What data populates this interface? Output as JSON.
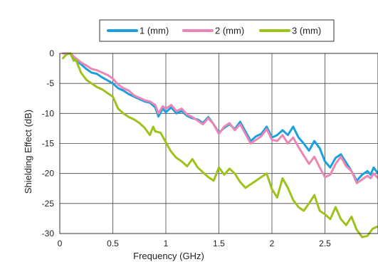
{
  "chart_data": {
    "type": "line",
    "title": "",
    "xlabel": "Frequency (GHz)",
    "ylabel": "Shielding Effect (dB)",
    "xlim": [
      0,
      3
    ],
    "ylim": [
      -30,
      0
    ],
    "x_ticks": [
      "0",
      "0.5",
      "1",
      "1.5",
      "2",
      "2.5"
    ],
    "y_ticks": [
      "0",
      "-5",
      "-10",
      "-15",
      "-20",
      "-25",
      "-30"
    ],
    "grid": true,
    "legend_position": "top-center",
    "series": [
      {
        "name": "1 (mm)",
        "color": "#1aa0dc",
        "points": [
          [
            0.03,
            0
          ],
          [
            0.1,
            0
          ],
          [
            0.15,
            -1.2
          ],
          [
            0.2,
            -1.8
          ],
          [
            0.25,
            -2.6
          ],
          [
            0.3,
            -3.2
          ],
          [
            0.35,
            -3.4
          ],
          [
            0.4,
            -4.0
          ],
          [
            0.45,
            -4.5
          ],
          [
            0.5,
            -5.0
          ],
          [
            0.55,
            -5.8
          ],
          [
            0.6,
            -6.2
          ],
          [
            0.65,
            -6.8
          ],
          [
            0.7,
            -7.2
          ],
          [
            0.75,
            -7.6
          ],
          [
            0.8,
            -8.0
          ],
          [
            0.85,
            -8.2
          ],
          [
            0.9,
            -9.0
          ],
          [
            0.93,
            -10.5
          ],
          [
            0.97,
            -9.2
          ],
          [
            1.0,
            -9.8
          ],
          [
            1.05,
            -9.0
          ],
          [
            1.1,
            -10.0
          ],
          [
            1.15,
            -9.6
          ],
          [
            1.2,
            -10.4
          ],
          [
            1.25,
            -10.8
          ],
          [
            1.3,
            -11.0
          ],
          [
            1.35,
            -11.6
          ],
          [
            1.4,
            -10.6
          ],
          [
            1.45,
            -11.8
          ],
          [
            1.5,
            -13.2
          ],
          [
            1.55,
            -12.4
          ],
          [
            1.6,
            -11.8
          ],
          [
            1.65,
            -12.6
          ],
          [
            1.7,
            -11.4
          ],
          [
            1.75,
            -13.0
          ],
          [
            1.8,
            -14.6
          ],
          [
            1.85,
            -13.8
          ],
          [
            1.9,
            -13.4
          ],
          [
            1.95,
            -12.2
          ],
          [
            2.0,
            -14.0
          ],
          [
            2.05,
            -13.6
          ],
          [
            2.1,
            -12.8
          ],
          [
            2.15,
            -13.6
          ],
          [
            2.2,
            -12.2
          ],
          [
            2.25,
            -14.0
          ],
          [
            2.3,
            -15.0
          ],
          [
            2.35,
            -16.2
          ],
          [
            2.4,
            -14.6
          ],
          [
            2.45,
            -15.8
          ],
          [
            2.5,
            -18.0
          ],
          [
            2.55,
            -19.0
          ],
          [
            2.6,
            -17.4
          ],
          [
            2.65,
            -16.8
          ],
          [
            2.7,
            -18.2
          ],
          [
            2.75,
            -19.6
          ],
          [
            2.8,
            -21.2
          ],
          [
            2.85,
            -20.2
          ],
          [
            2.9,
            -19.6
          ],
          [
            2.93,
            -20.2
          ],
          [
            2.96,
            -19.0
          ],
          [
            3.0,
            -20.0
          ]
        ]
      },
      {
        "name": "2 (mm)",
        "color": "#ec86b4",
        "points": [
          [
            0.03,
            0
          ],
          [
            0.1,
            0
          ],
          [
            0.15,
            -0.8
          ],
          [
            0.2,
            -1.5
          ],
          [
            0.25,
            -2.0
          ],
          [
            0.3,
            -2.6
          ],
          [
            0.35,
            -2.8
          ],
          [
            0.4,
            -3.2
          ],
          [
            0.45,
            -3.6
          ],
          [
            0.5,
            -4.2
          ],
          [
            0.55,
            -5.2
          ],
          [
            0.6,
            -5.8
          ],
          [
            0.65,
            -6.2
          ],
          [
            0.7,
            -7.0
          ],
          [
            0.75,
            -7.4
          ],
          [
            0.8,
            -7.8
          ],
          [
            0.85,
            -8.0
          ],
          [
            0.9,
            -8.6
          ],
          [
            0.93,
            -10.0
          ],
          [
            0.97,
            -8.8
          ],
          [
            1.0,
            -9.2
          ],
          [
            1.05,
            -8.6
          ],
          [
            1.1,
            -9.6
          ],
          [
            1.15,
            -9.2
          ],
          [
            1.2,
            -10.2
          ],
          [
            1.25,
            -10.6
          ],
          [
            1.3,
            -11.2
          ],
          [
            1.35,
            -11.8
          ],
          [
            1.4,
            -10.8
          ],
          [
            1.45,
            -11.8
          ],
          [
            1.5,
            -13.4
          ],
          [
            1.55,
            -12.2
          ],
          [
            1.6,
            -11.6
          ],
          [
            1.65,
            -12.8
          ],
          [
            1.7,
            -11.8
          ],
          [
            1.75,
            -13.4
          ],
          [
            1.8,
            -15.0
          ],
          [
            1.85,
            -14.4
          ],
          [
            1.9,
            -13.8
          ],
          [
            1.95,
            -12.6
          ],
          [
            2.0,
            -14.4
          ],
          [
            2.05,
            -14.6
          ],
          [
            2.1,
            -13.6
          ],
          [
            2.15,
            -15.0
          ],
          [
            2.2,
            -14.0
          ],
          [
            2.25,
            -15.6
          ],
          [
            2.3,
            -17.0
          ],
          [
            2.35,
            -18.4
          ],
          [
            2.4,
            -17.2
          ],
          [
            2.45,
            -19.0
          ],
          [
            2.5,
            -20.6
          ],
          [
            2.55,
            -20.2
          ],
          [
            2.6,
            -18.4
          ],
          [
            2.65,
            -17.2
          ],
          [
            2.7,
            -18.8
          ],
          [
            2.75,
            -19.6
          ],
          [
            2.8,
            -21.6
          ],
          [
            2.85,
            -21.0
          ],
          [
            2.9,
            -20.4
          ],
          [
            2.93,
            -20.8
          ],
          [
            2.96,
            -20.0
          ],
          [
            3.0,
            -20.8
          ]
        ]
      },
      {
        "name": "3 (mm)",
        "color": "#9ec21c",
        "points": [
          [
            0.03,
            -0.8
          ],
          [
            0.06,
            -0.2
          ],
          [
            0.1,
            0
          ],
          [
            0.13,
            -1.2
          ],
          [
            0.15,
            -1.0
          ],
          [
            0.2,
            -3.2
          ],
          [
            0.25,
            -4.4
          ],
          [
            0.3,
            -5.0
          ],
          [
            0.35,
            -5.6
          ],
          [
            0.4,
            -6.0
          ],
          [
            0.45,
            -6.6
          ],
          [
            0.5,
            -7.2
          ],
          [
            0.55,
            -9.2
          ],
          [
            0.6,
            -10.0
          ],
          [
            0.65,
            -10.6
          ],
          [
            0.7,
            -11.0
          ],
          [
            0.75,
            -11.6
          ],
          [
            0.8,
            -12.4
          ],
          [
            0.85,
            -13.6
          ],
          [
            0.88,
            -12.2
          ],
          [
            0.9,
            -13.0
          ],
          [
            0.95,
            -13.2
          ],
          [
            1.0,
            -14.8
          ],
          [
            1.05,
            -16.4
          ],
          [
            1.1,
            -17.4
          ],
          [
            1.15,
            -18.0
          ],
          [
            1.2,
            -18.8
          ],
          [
            1.25,
            -17.6
          ],
          [
            1.3,
            -19.0
          ],
          [
            1.35,
            -19.8
          ],
          [
            1.4,
            -20.6
          ],
          [
            1.45,
            -21.2
          ],
          [
            1.5,
            -19.0
          ],
          [
            1.55,
            -20.2
          ],
          [
            1.6,
            -19.2
          ],
          [
            1.65,
            -20.0
          ],
          [
            1.7,
            -21.4
          ],
          [
            1.75,
            -22.4
          ],
          [
            1.8,
            -21.8
          ],
          [
            1.85,
            -21.2
          ],
          [
            1.9,
            -20.6
          ],
          [
            1.95,
            -20.0
          ],
          [
            2.0,
            -22.6
          ],
          [
            2.05,
            -24.0
          ],
          [
            2.1,
            -20.8
          ],
          [
            2.15,
            -22.4
          ],
          [
            2.2,
            -24.4
          ],
          [
            2.25,
            -25.6
          ],
          [
            2.3,
            -26.2
          ],
          [
            2.35,
            -25.0
          ],
          [
            2.4,
            -23.6
          ],
          [
            2.45,
            -26.2
          ],
          [
            2.5,
            -26.8
          ],
          [
            2.55,
            -27.6
          ],
          [
            2.6,
            -25.6
          ],
          [
            2.65,
            -27.6
          ],
          [
            2.7,
            -28.6
          ],
          [
            2.75,
            -27.2
          ],
          [
            2.8,
            -29.4
          ],
          [
            2.85,
            -30.6
          ],
          [
            2.9,
            -30.4
          ],
          [
            2.95,
            -29.2
          ],
          [
            3.0,
            -28.8
          ]
        ]
      }
    ]
  }
}
